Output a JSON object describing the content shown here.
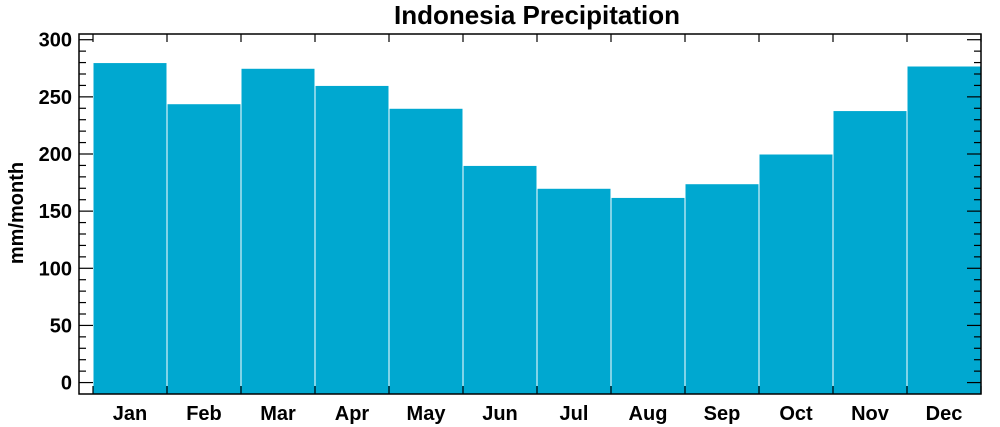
{
  "chart_data": {
    "type": "bar",
    "title": "Indonesia Precipitation",
    "xlabel": "",
    "ylabel": "mm/month",
    "categories": [
      "Jan",
      "Feb",
      "Mar",
      "Apr",
      "May",
      "Jun",
      "Jul",
      "Aug",
      "Sep",
      "Oct",
      "Nov",
      "Dec"
    ],
    "values": [
      280,
      244,
      275,
      260,
      240,
      190,
      170,
      162,
      174,
      200,
      238,
      277
    ],
    "ylim": [
      -10,
      305
    ],
    "yticks": [
      0,
      50,
      100,
      150,
      200,
      250,
      300
    ],
    "yticks_minor_step": 10,
    "bar_color": "#00a8d0",
    "bar_edge_color": "#ffffff",
    "grid": false,
    "legend": "none"
  }
}
